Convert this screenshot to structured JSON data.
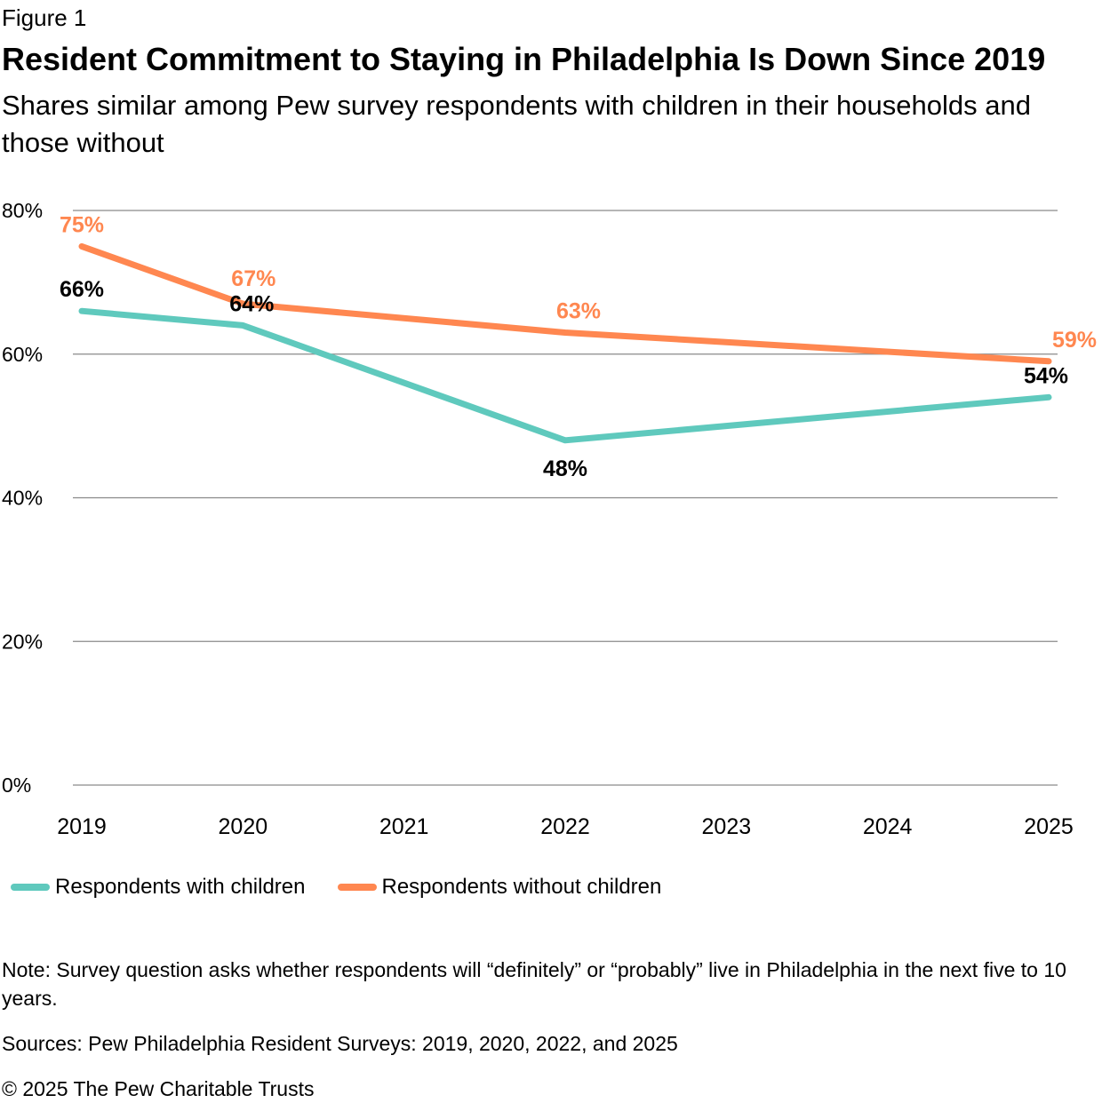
{
  "figure_label": "Figure 1",
  "title": "Resident Commitment to Staying in Philadelphia Is Down Since 2019",
  "subtitle": "Shares similar among Pew survey respondents with children in their households and those without",
  "chart_data": {
    "type": "line",
    "x": [
      2019,
      2020,
      2021,
      2022,
      2023,
      2024,
      2025
    ],
    "x_tick_labels": [
      "2019",
      "2020",
      "2021",
      "2022",
      "2023",
      "2024",
      "2025"
    ],
    "y_ticks": [
      0,
      20,
      40,
      60,
      80
    ],
    "y_tick_labels": [
      "0%",
      "20%",
      "40%",
      "60%",
      "80%"
    ],
    "ylim": [
      0,
      80
    ],
    "grid": "horizontal",
    "legend_position": "bottom-left",
    "series": [
      {
        "name": "Respondents with children",
        "color": "#5fc9bd",
        "points": [
          {
            "x": 2019,
            "y": 66
          },
          {
            "x": 2020,
            "y": 64
          },
          {
            "x": 2022,
            "y": 48
          },
          {
            "x": 2025,
            "y": 54
          }
        ],
        "labels": [
          "66%",
          "64%",
          "48%",
          "54%"
        ]
      },
      {
        "name": "Respondents without children",
        "color": "#ff8750",
        "points": [
          {
            "x": 2019,
            "y": 75
          },
          {
            "x": 2020,
            "y": 67
          },
          {
            "x": 2022,
            "y": 63
          },
          {
            "x": 2025,
            "y": 59
          }
        ],
        "labels": [
          "75%",
          "67%",
          "63%",
          "59%"
        ]
      }
    ]
  },
  "legend": {
    "with_children": "Respondents with children",
    "without_children": "Respondents without children"
  },
  "note": "Note: Survey question asks whether respondents will “definitely” or “probably” live in Philadelphia in the next five to 10 years.",
  "sources": "Sources: Pew Philadelphia Resident Surveys: 2019, 2020, 2022, and 2025",
  "copyright": "© 2025 The Pew Charitable Trusts"
}
